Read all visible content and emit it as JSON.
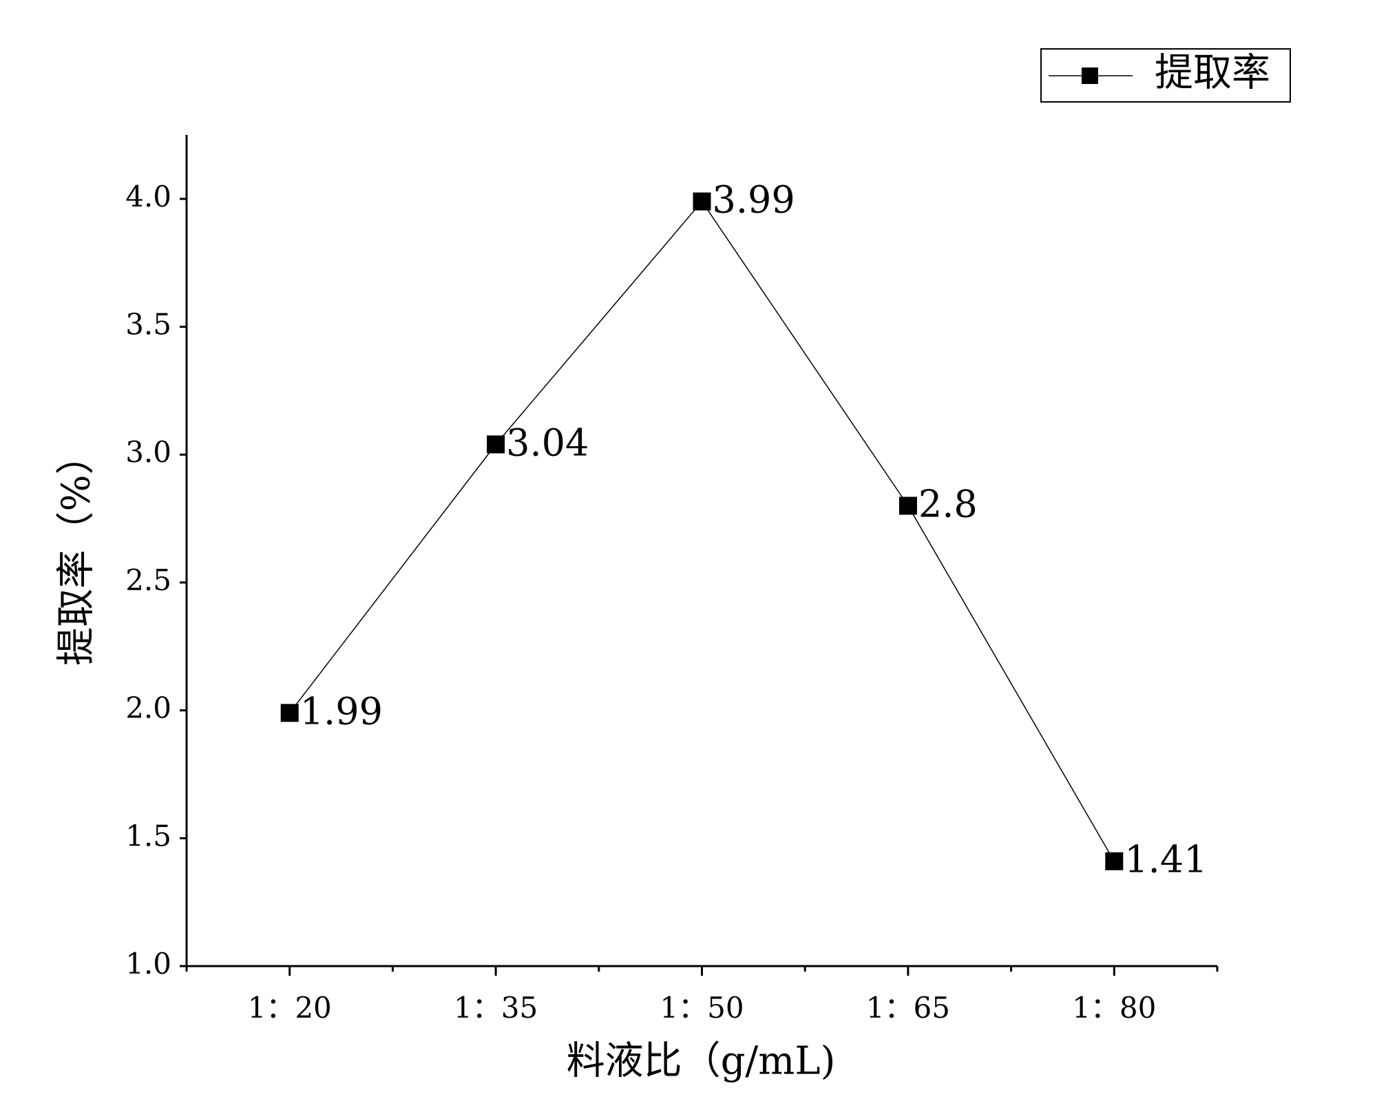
{
  "chart_data": {
    "type": "line",
    "x_label": "料液比（g/mL)",
    "y_label": "提取率（%）",
    "categories": [
      "1：20",
      "1：35",
      "1：50",
      "1：65",
      "1：80"
    ],
    "series": [
      {
        "name": "提取率",
        "color": "#000000",
        "values": [
          1.99,
          3.04,
          3.99,
          2.8,
          1.41
        ]
      }
    ],
    "ylim": [
      1.0,
      4.25
    ],
    "yticks": [
      {
        "value": 1,
        "label": "1.0"
      },
      1.5,
      {
        "value": 2,
        "label": "2.0"
      },
      2.5,
      {
        "value": 3,
        "label": "3.0"
      },
      3.5,
      {
        "value": 4,
        "label": "4.0"
      }
    ],
    "legend": "top-right",
    "grid": false
  }
}
